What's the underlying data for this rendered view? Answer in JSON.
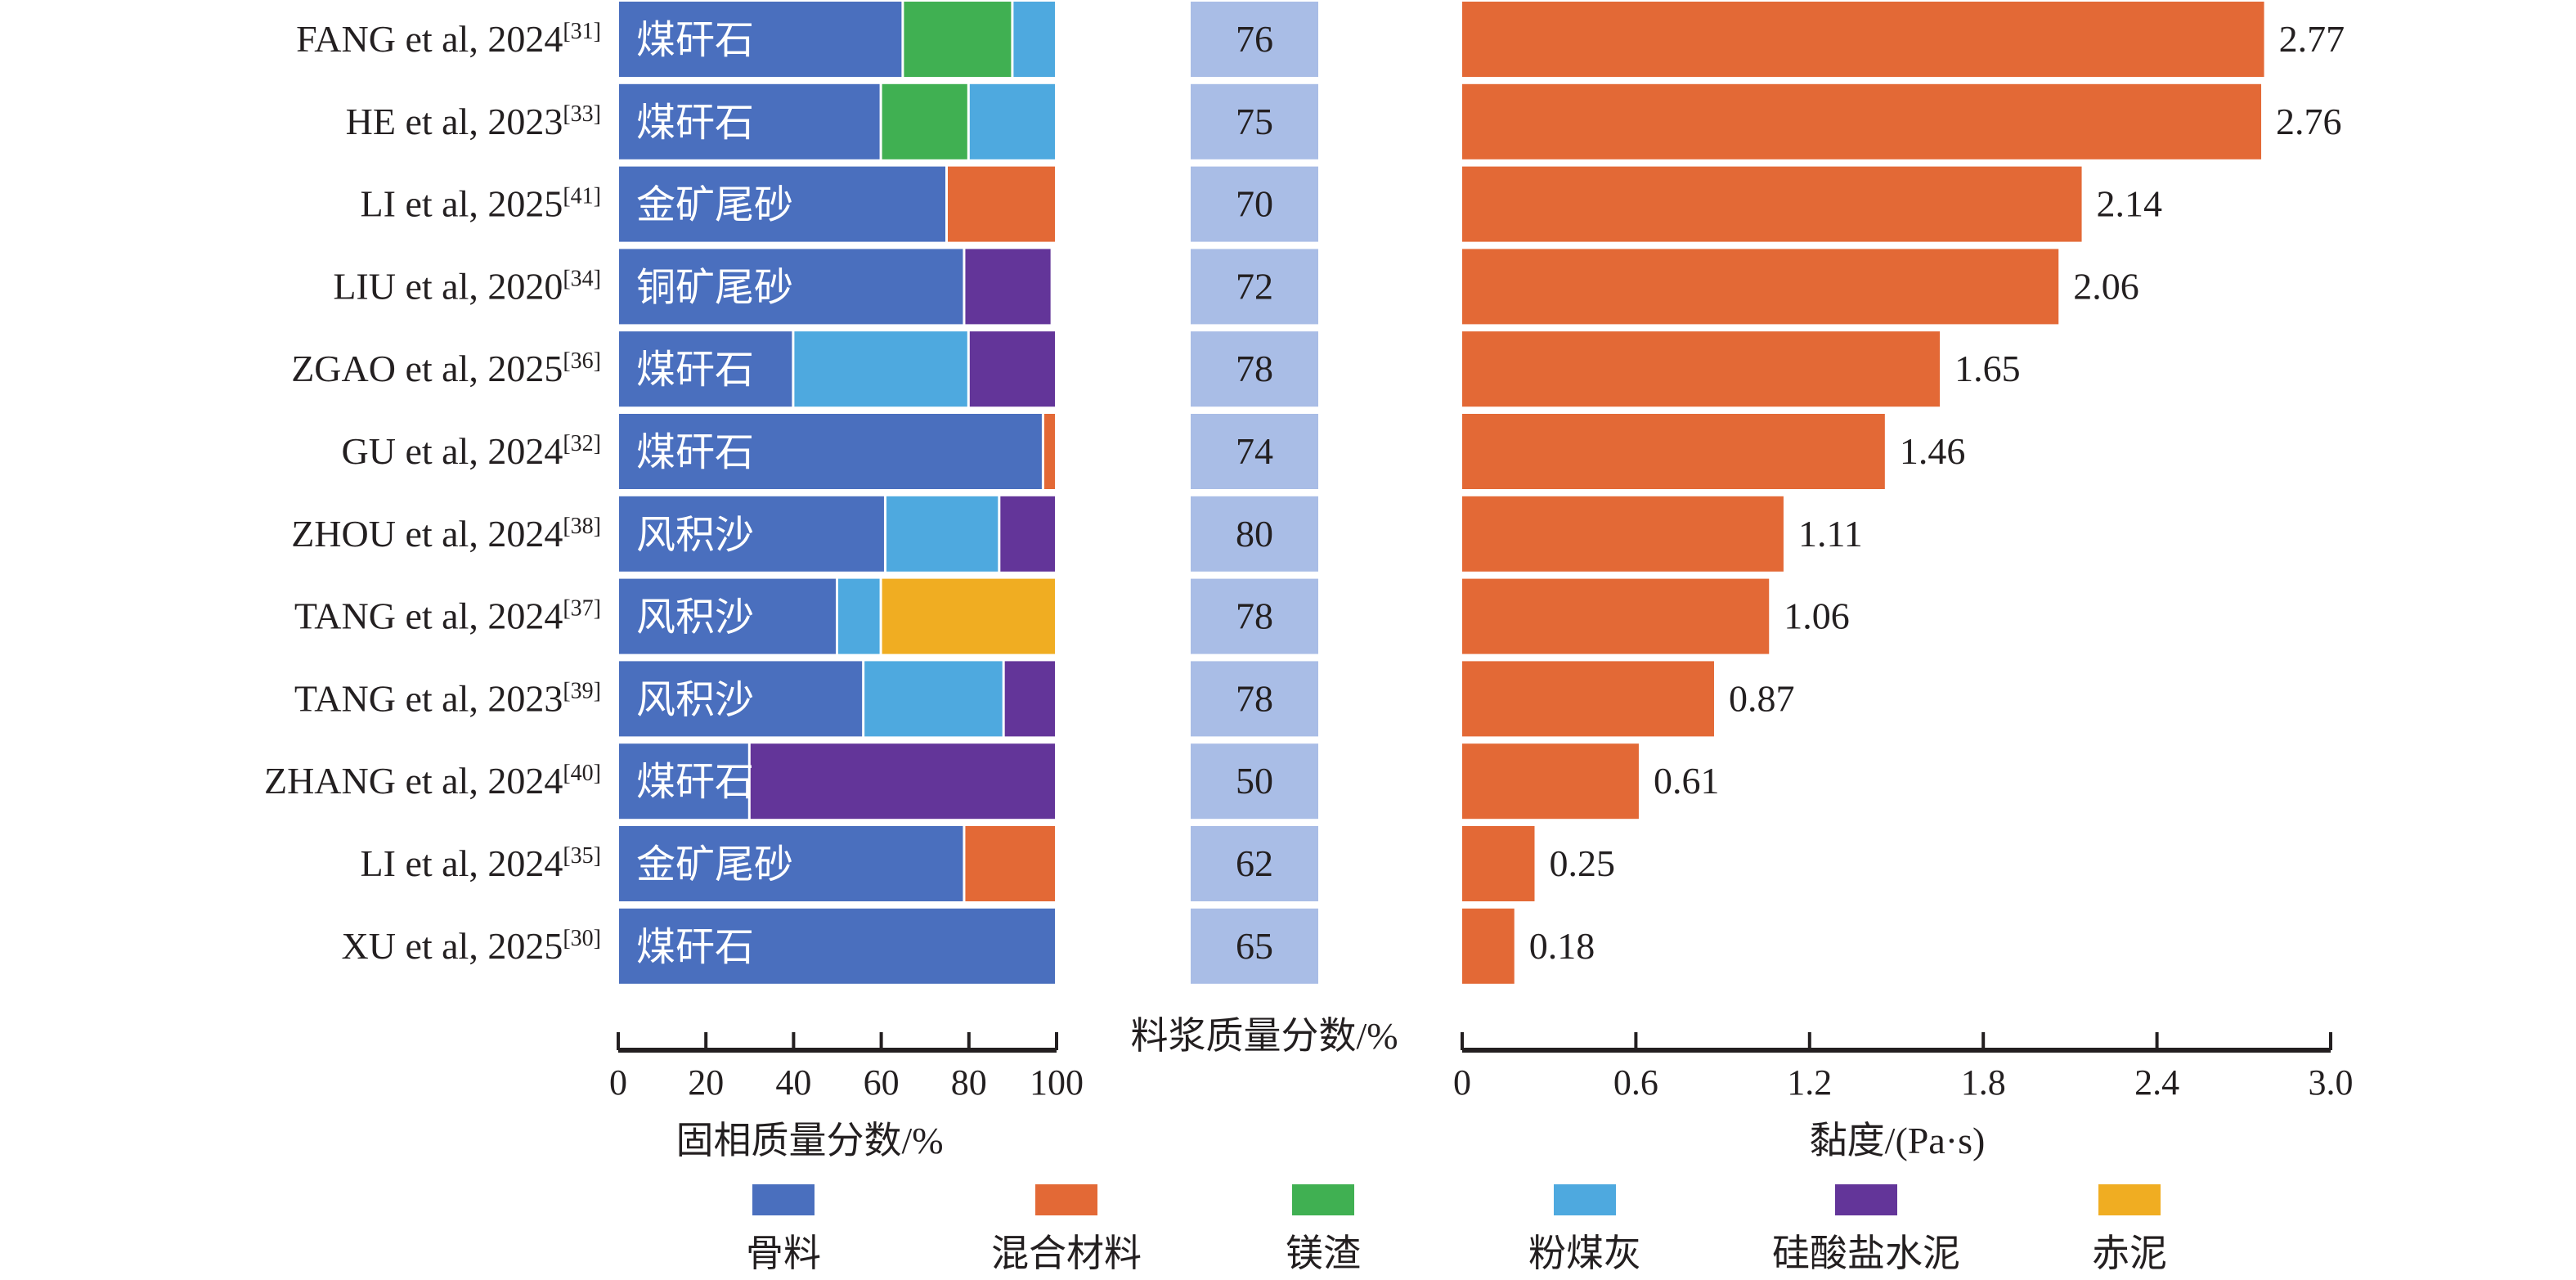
{
  "chart_data": [
    {
      "type": "bar",
      "stacked": true,
      "orientation": "horizontal",
      "title": "",
      "xlabel": "固相质量分数/%",
      "xlim": [
        0,
        100
      ],
      "xticks": [
        "0",
        "20",
        "40",
        "60",
        "80",
        "100"
      ],
      "categories": [
        {
          "author": "FANG et al, 2024",
          "ref": "[31]"
        },
        {
          "author": "HE et al, 2023",
          "ref": "[33]"
        },
        {
          "author": "LI et al, 2025",
          "ref": "[41]"
        },
        {
          "author": "LIU et al, 2020",
          "ref": "[34]"
        },
        {
          "author": "ZGAO et al, 2025",
          "ref": "[36]"
        },
        {
          "author": "GU et al, 2024",
          "ref": "[32]"
        },
        {
          "author": "ZHOU et al, 2024",
          "ref": "[38]"
        },
        {
          "author": "TANG et al, 2024",
          "ref": "[37]"
        },
        {
          "author": "TANG et al, 2023",
          "ref": "[39]"
        },
        {
          "author": "ZHANG et al, 2024",
          "ref": "[40]"
        },
        {
          "author": "LI et al, 2024",
          "ref": "[35]"
        },
        {
          "author": "XU et al, 2025",
          "ref": "[30]"
        }
      ],
      "aggregate_names": [
        "煤矸石",
        "煤矸石",
        "金矿尾砂",
        "铜矿尾砂",
        "煤矸石",
        "煤矸石",
        "风积沙",
        "风积沙",
        "风积沙",
        "煤矸石",
        "金矿尾砂",
        "煤矸石"
      ],
      "series": [
        {
          "name": "骨料",
          "color": "#4a6fbe",
          "values": [
            65,
            60,
            75,
            79,
            40,
            97,
            61,
            50,
            56,
            30,
            79,
            100
          ]
        },
        {
          "name": "混合材料",
          "color": "#e36936",
          "values": [
            0,
            0,
            25,
            0,
            0,
            3,
            0,
            0,
            0,
            0,
            21,
            0
          ]
        },
        {
          "name": "镁渣",
          "color": "#40b052",
          "values": [
            25,
            20,
            0,
            0,
            0,
            0,
            0,
            0,
            0,
            0,
            0,
            0
          ]
        },
        {
          "name": "粉煤灰",
          "color": "#4ea9df",
          "values": [
            10,
            20,
            0,
            0,
            40,
            0,
            26,
            10,
            32,
            0,
            0,
            0
          ]
        },
        {
          "name": "硅酸盐水泥",
          "color": "#633599",
          "values": [
            0,
            0,
            0,
            20,
            20,
            0,
            13,
            0,
            12,
            70,
            0,
            0
          ]
        },
        {
          "name": "赤泥",
          "color": "#f0ad22",
          "values": [
            0,
            0,
            0,
            0,
            0,
            0,
            0,
            40,
            0,
            0,
            0,
            0
          ]
        }
      ]
    },
    {
      "type": "table",
      "title": "料浆质量分数/%",
      "color": "#a9bde6",
      "values": [
        76,
        75,
        70,
        72,
        78,
        74,
        80,
        78,
        78,
        50,
        62,
        65
      ]
    },
    {
      "type": "bar",
      "orientation": "horizontal",
      "xlabel": "黏度/(Pa·s)",
      "xlim": [
        0,
        3.0
      ],
      "xticks": [
        "0",
        "0.6",
        "1.2",
        "1.8",
        "2.4",
        "3.0"
      ],
      "color": "#e36936",
      "values": [
        2.77,
        2.76,
        2.14,
        2.06,
        1.65,
        1.46,
        1.11,
        1.06,
        0.87,
        0.61,
        0.25,
        0.18
      ],
      "labels": [
        "2.77",
        "2.76",
        "2.14",
        "2.06",
        "1.65",
        "1.46",
        "1.11",
        "1.06",
        "0.87",
        "0.61",
        "0.25",
        "0.18"
      ]
    }
  ],
  "legend": {
    "placement": "bottom",
    "items": [
      "骨料",
      "混合材料",
      "镁渣",
      "粉煤灰",
      "硅酸盐水泥",
      "赤泥"
    ]
  }
}
